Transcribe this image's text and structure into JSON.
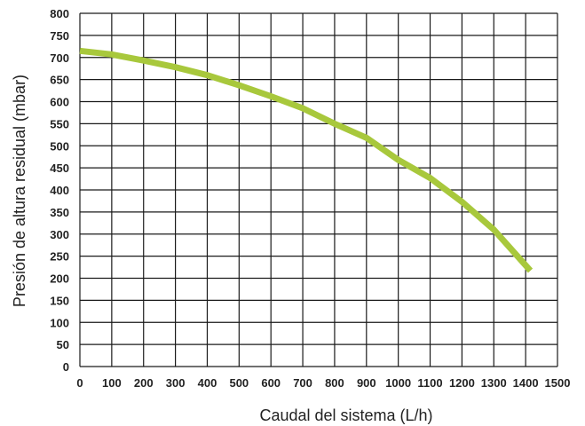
{
  "chart_data": {
    "type": "line",
    "title": "",
    "xlabel": "Caudal del sistema (L/h)",
    "ylabel": "Presión de altura residual (mbar)",
    "xlim": [
      0,
      1500
    ],
    "ylim": [
      0,
      800
    ],
    "x_ticks": [
      0,
      100,
      200,
      300,
      400,
      500,
      600,
      700,
      800,
      900,
      1000,
      1100,
      1200,
      1300,
      1400,
      1500
    ],
    "y_ticks": [
      0,
      50,
      100,
      150,
      200,
      250,
      300,
      350,
      400,
      450,
      500,
      550,
      600,
      650,
      700,
      750,
      800
    ],
    "grid": true,
    "legend": "none",
    "series": [
      {
        "color": "#a8c83c",
        "x": [
          0,
          100,
          200,
          300,
          400,
          500,
          600,
          700,
          800,
          900,
          1000,
          1100,
          1200,
          1300,
          1415
        ],
        "y": [
          715,
          707,
          693,
          678,
          660,
          637,
          612,
          585,
          550,
          518,
          468,
          427,
          373,
          310,
          217
        ]
      }
    ]
  }
}
